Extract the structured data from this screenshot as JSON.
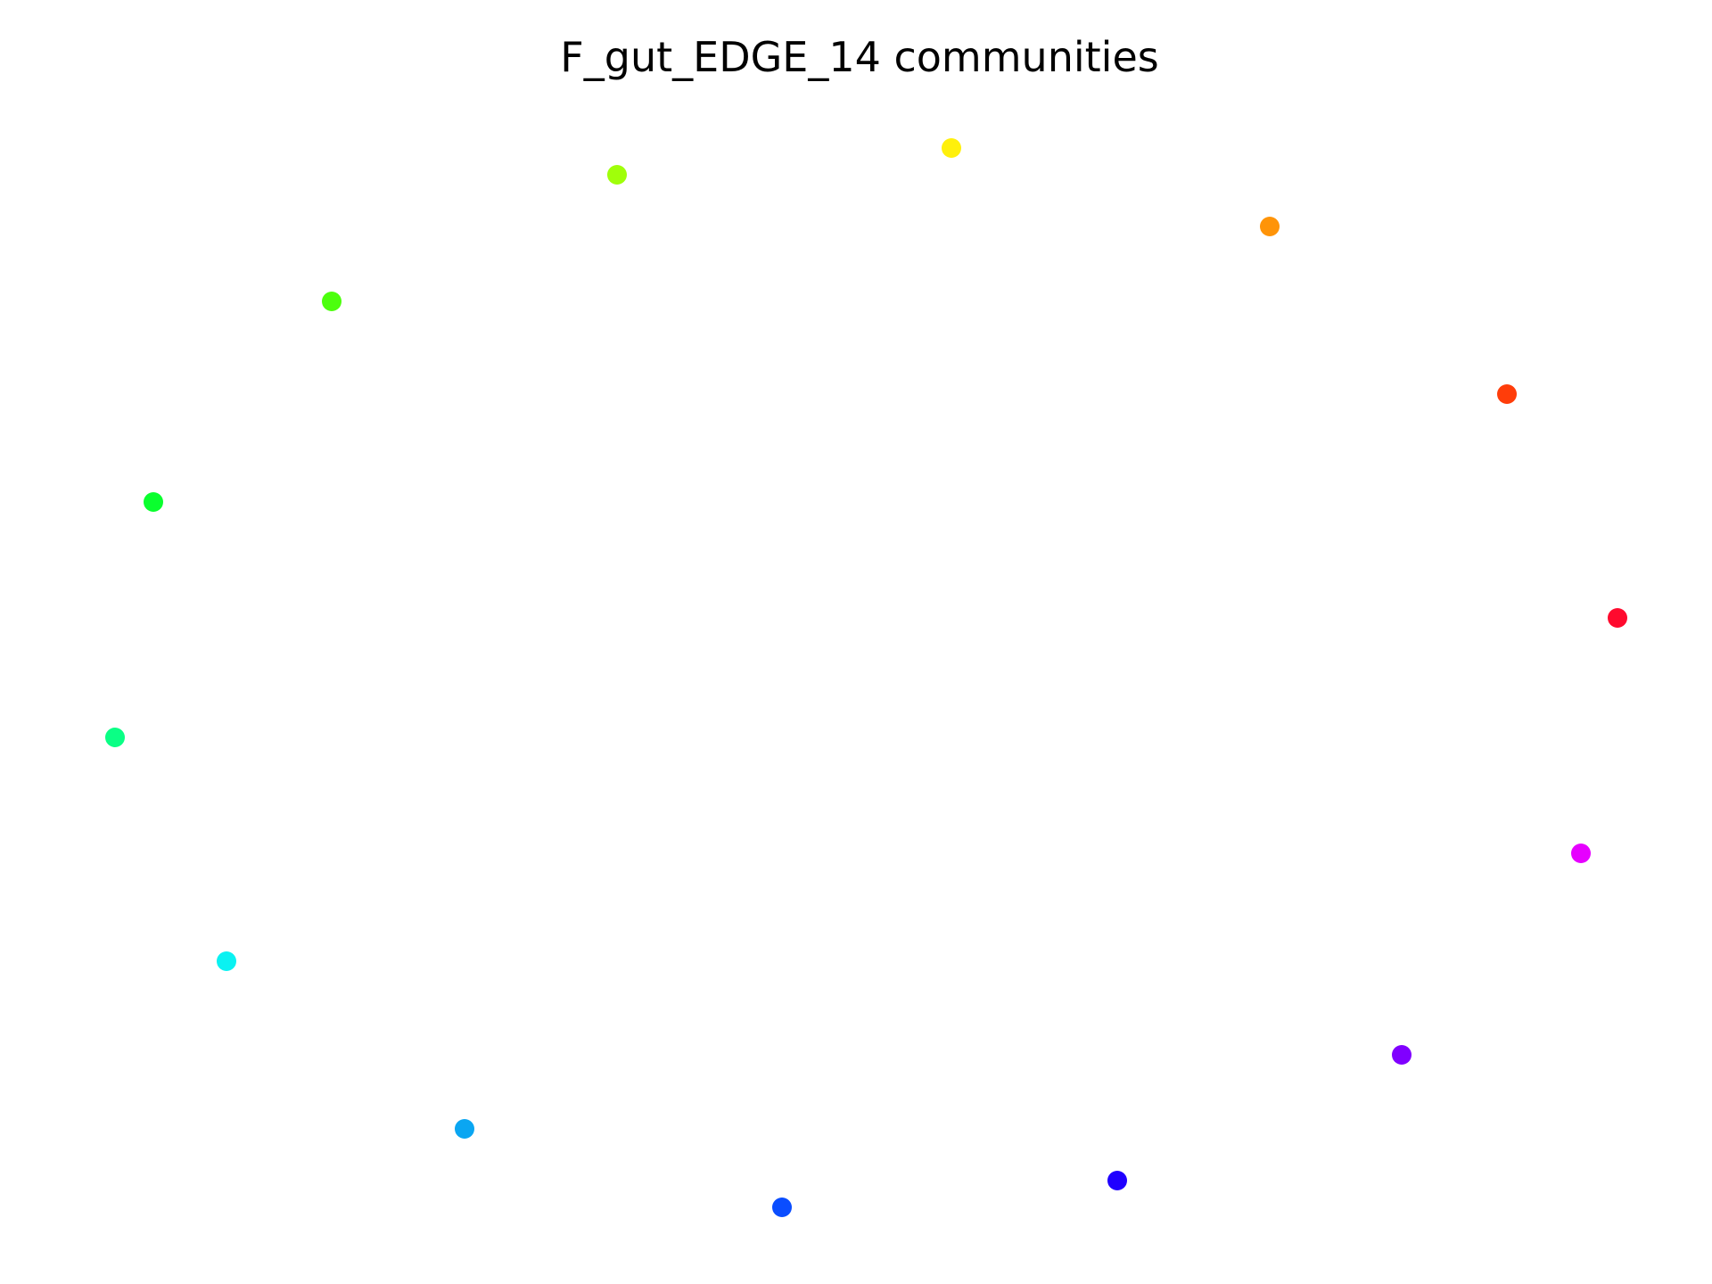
{
  "title": "F_gut_EDGE_14 communities",
  "nodes": [
    {
      "id": "n1",
      "color": "#ff0a2e"
    },
    {
      "id": "n2",
      "color": "#ff3d0a"
    },
    {
      "id": "n3",
      "color": "#ff9408"
    },
    {
      "id": "n4",
      "color": "#fff00c"
    },
    {
      "id": "n5",
      "color": "#a0ff0a"
    },
    {
      "id": "n6",
      "color": "#4cff0d"
    },
    {
      "id": "n7",
      "color": "#0aff2e"
    },
    {
      "id": "n8",
      "color": "#0aff85"
    },
    {
      "id": "n9",
      "color": "#0af2f2"
    },
    {
      "id": "n10",
      "color": "#0aa6f2"
    },
    {
      "id": "n11",
      "color": "#0a4dff"
    },
    {
      "id": "n12",
      "color": "#2000ff"
    },
    {
      "id": "n13",
      "color": "#8000ff"
    },
    {
      "id": "n14",
      "color": "#e600ff"
    }
  ]
}
